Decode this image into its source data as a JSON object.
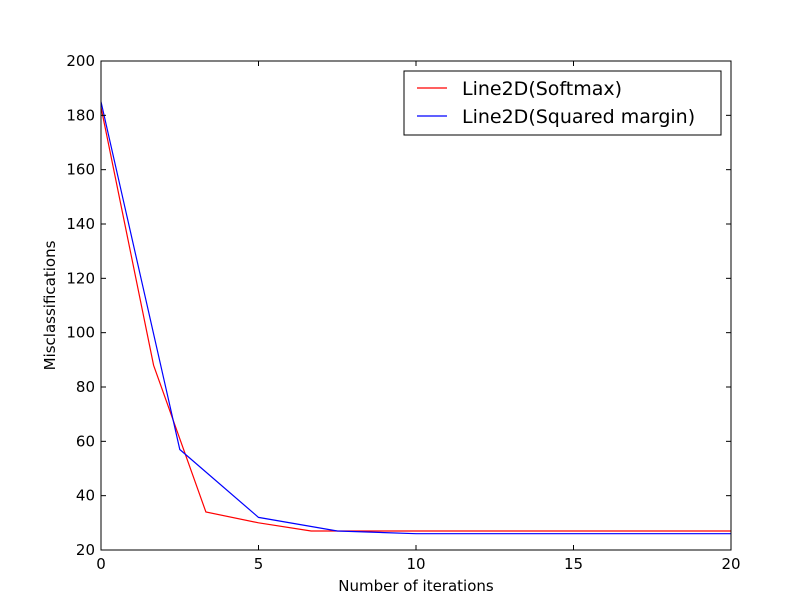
{
  "chart_data": {
    "type": "line",
    "title": "",
    "xlabel": "Number of iterations",
    "ylabel": "Misclassifications",
    "xlim": [
      0,
      20
    ],
    "ylim": [
      20,
      200
    ],
    "xticks": [
      0,
      5,
      10,
      15,
      20
    ],
    "yticks": [
      20,
      40,
      60,
      80,
      100,
      120,
      140,
      160,
      180,
      200
    ],
    "grid": false,
    "legend_position": "top-right",
    "series": [
      {
        "name": "Line2D(Softmax)",
        "color": "#ff0000",
        "x": [
          0,
          1.67,
          3.33,
          5,
          6.67,
          8.33,
          10,
          20
        ],
        "y": [
          183,
          88,
          34,
          30,
          27,
          27,
          27,
          27
        ]
      },
      {
        "name": "Line2D(Squared margin)",
        "color": "#0000ff",
        "x": [
          0,
          2.5,
          5,
          7.5,
          10,
          20
        ],
        "y": [
          185,
          57,
          32,
          27,
          26,
          26
        ]
      }
    ]
  }
}
